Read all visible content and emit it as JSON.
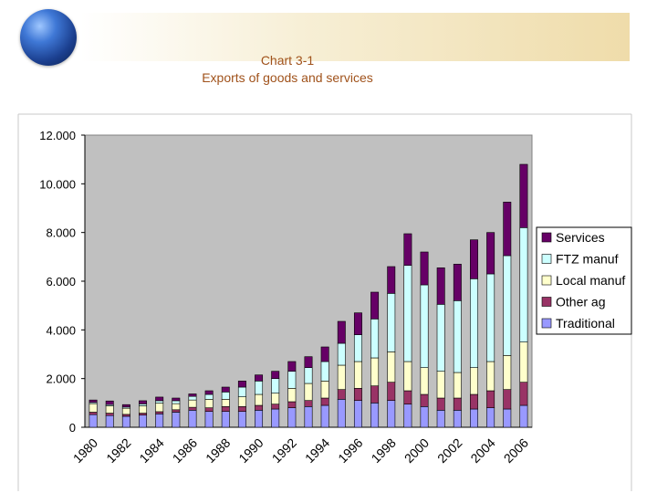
{
  "header": {
    "title_line1": "Chart 3-1",
    "title_line2": "Exports of goods and services"
  },
  "chart_data": {
    "type": "bar",
    "stacked": true,
    "title": "Chart 3-1 Exports of goods and services",
    "xlabel": "",
    "ylabel": "",
    "ylim": [
      0,
      12000
    ],
    "y_ticks": [
      0,
      2000,
      4000,
      6000,
      8000,
      10000,
      12000
    ],
    "y_tick_labels": [
      "0",
      "2.000",
      "4.000",
      "6.000",
      "8.000",
      "10.000",
      "12.000"
    ],
    "x_tick_labels": [
      "1980",
      "1982",
      "1984",
      "1986",
      "1988",
      "1990",
      "1992",
      "1994",
      "1996",
      "1998",
      "2000",
      "2002",
      "2004",
      "2006"
    ],
    "categories": [
      "1980",
      "1981",
      "1982",
      "1983",
      "1984",
      "1985",
      "1986",
      "1987",
      "1988",
      "1989",
      "1990",
      "1991",
      "1992",
      "1993",
      "1994",
      "1995",
      "1996",
      "1997",
      "1998",
      "1999",
      "2000",
      "2001",
      "2002",
      "2003",
      "2004",
      "2005",
      "2006"
    ],
    "legend_position": "right",
    "grid": false,
    "series": [
      {
        "name": "Traditional",
        "color": "#9999ff",
        "values": [
          520,
          480,
          450,
          500,
          550,
          620,
          700,
          650,
          650,
          650,
          700,
          750,
          800,
          850,
          900,
          1150,
          1100,
          1000,
          1100,
          950,
          850,
          700,
          700,
          750,
          800,
          750,
          900
        ]
      },
      {
        "name": "Other ag",
        "color": "#993366",
        "values": [
          100,
          100,
          80,
          80,
          90,
          100,
          120,
          150,
          200,
          200,
          200,
          200,
          250,
          250,
          300,
          400,
          500,
          700,
          750,
          550,
          500,
          500,
          500,
          600,
          700,
          800,
          950
        ]
      },
      {
        "name": "Local manuf",
        "color": "#ffffcc",
        "values": [
          350,
          300,
          250,
          300,
          350,
          250,
          300,
          350,
          300,
          400,
          450,
          450,
          550,
          700,
          700,
          1000,
          1100,
          1150,
          1250,
          1200,
          1100,
          1100,
          1050,
          1100,
          1200,
          1400,
          1650
        ]
      },
      {
        "name": "FTZ manuf",
        "color": "#ccffff",
        "values": [
          50,
          50,
          50,
          80,
          100,
          120,
          150,
          200,
          300,
          400,
          550,
          600,
          700,
          650,
          800,
          900,
          1100,
          1600,
          2400,
          3950,
          3400,
          2750,
          2950,
          3650,
          3600,
          4100,
          4700
        ]
      },
      {
        "name": "Services",
        "color": "#660066",
        "values": [
          100,
          150,
          100,
          130,
          150,
          110,
          100,
          150,
          200,
          250,
          250,
          300,
          400,
          450,
          600,
          900,
          900,
          1100,
          1100,
          1300,
          1350,
          1500,
          1500,
          1600,
          1700,
          2200,
          2600
        ]
      }
    ]
  }
}
